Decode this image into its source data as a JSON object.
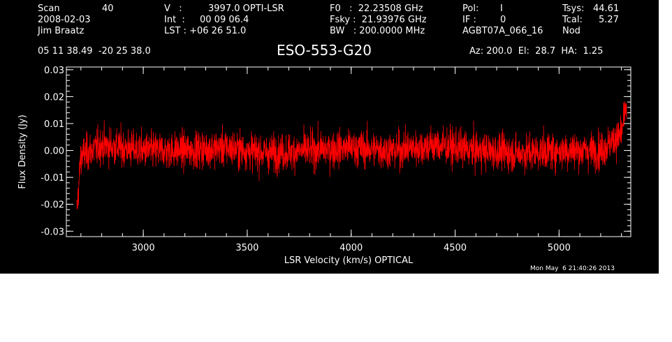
{
  "header": {
    "col1": [
      "Scan",
      "2008-02-03",
      "Jim Braatz"
    ],
    "scan_number": "40",
    "col2": [
      "V   :",
      "Int  :",
      "LST : +06 26 51.0"
    ],
    "col2_values": [
      "3997.0 OPTI-LSR",
      "00 09 06.4"
    ],
    "col3": [
      "F0   :  22.23508 GHz",
      "Fsky :  21.93976 GHz",
      "BW   : 200.0000 MHz"
    ],
    "col4": [
      "Pol:",
      "IF :",
      "AGBT07A_066_16"
    ],
    "col4_values": [
      "I",
      "0"
    ],
    "col5": [
      "Tsys:",
      "Tcal:",
      "Nod"
    ],
    "col5_values": [
      "44.61",
      "5.27"
    ],
    "coords": "05 11 38.49  -20 25 38.0",
    "source": "ESO-553-G20",
    "pointing": "Az: 200.0  El:  28.7  HA:  1.25"
  },
  "timestamp": "Mon May  6 21:40:26 2013",
  "chart_data": {
    "type": "line",
    "title": "",
    "xlabel": "LSR Velocity (km/s) OPTICAL",
    "ylabel": "Flux Density (Jy)",
    "xlim": [
      2630,
      5345
    ],
    "ylim": [
      -0.032,
      0.031
    ],
    "x_ticks": [
      3000,
      3500,
      4000,
      4500,
      5000
    ],
    "y_ticks": [
      "0.03",
      "0.02",
      "0.01",
      "0.00",
      "-0.01",
      "-0.02",
      "-0.03"
    ],
    "y_tick_values": [
      0.03,
      0.02,
      0.01,
      0.0,
      -0.01,
      -0.02,
      -0.03
    ],
    "series": [
      {
        "color": "#ff0000",
        "description": "noise-dominated spectrum centred near 0 Jy, typical excursions about ±0.01 Jy",
        "x_start": 2680,
        "x_end": 5325,
        "x": [
          2680,
          2700,
          2750,
          2800,
          2900,
          3000,
          3200,
          3400,
          3600,
          3800,
          4000,
          4200,
          4400,
          4600,
          4800,
          5000,
          5200,
          5300,
          5325
        ],
        "y": [
          -0.023,
          -0.002,
          0.0,
          0.002,
          0.001,
          0.0,
          0.0,
          0.001,
          -0.001,
          0.0,
          0.001,
          0.0,
          0.002,
          0.0,
          -0.001,
          0.0,
          0.0,
          0.006,
          0.017
        ]
      }
    ]
  }
}
